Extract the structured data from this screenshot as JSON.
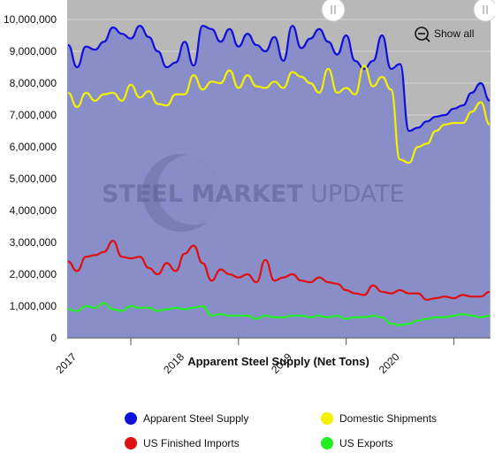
{
  "chart_data": {
    "type": "area",
    "title": "Apparent Steel Supply (Net Tons)",
    "watermark": {
      "bold": "STEEL MARKET",
      "light": " UPDATE"
    },
    "zoom_button_label": "Show all",
    "ylim": [
      0,
      10000000
    ],
    "y_ticks": [
      "0",
      "1,000,000",
      "2,000,000",
      "3,000,000",
      "4,000,000",
      "5,000,000",
      "6,000,000",
      "7,000,000",
      "8,000,000",
      "9,000,000",
      "10,000,000"
    ],
    "x_ticks": [
      "2017",
      "2018",
      "2019",
      "2020"
    ],
    "x_start": "2016-06",
    "grid": true,
    "legend_position": "bottom",
    "colors": {
      "background_band": "#b8b8b8",
      "plot_area": "#8a8ec8"
    },
    "series": [
      {
        "name": "Apparent Steel Supply",
        "color": "#1010dd",
        "values": [
          9200000,
          8500000,
          9150000,
          9050000,
          9300000,
          9750000,
          9550000,
          9400000,
          9800000,
          9450000,
          9000000,
          8500000,
          8650000,
          9300000,
          8550000,
          9800000,
          9700000,
          9300000,
          9700000,
          9150000,
          9550000,
          9200000,
          9000000,
          9450000,
          8700000,
          9800000,
          9100000,
          9400000,
          9700000,
          9300000,
          8900000,
          9500000,
          8700000,
          8450000,
          8700000,
          9500000,
          8450000,
          8600000,
          6500000,
          6600000,
          6800000,
          6950000,
          7000000,
          7200000,
          7300000,
          7700000,
          8000000,
          7450000
        ]
      },
      {
        "name": "Domestic Shipments",
        "color": "#f2f200",
        "values": [
          7700000,
          7250000,
          7700000,
          7450000,
          7650000,
          7700000,
          7450000,
          7950000,
          7550000,
          7750000,
          7350000,
          7300000,
          7650000,
          7650000,
          8250000,
          7800000,
          8050000,
          8000000,
          8400000,
          7850000,
          8250000,
          7900000,
          7850000,
          8050000,
          7850000,
          8350000,
          8200000,
          8000000,
          7700000,
          8450000,
          7700000,
          7850000,
          7650000,
          8550000,
          7900000,
          8200000,
          7800000,
          5600000,
          5500000,
          6000000,
          6100000,
          6500000,
          6700000,
          6750000,
          6750000,
          7100000,
          7400000,
          6700000
        ]
      },
      {
        "name": "US Finished Imports",
        "color": "#e01010",
        "values": [
          2400000,
          2100000,
          2550000,
          2600000,
          2700000,
          3050000,
          2550000,
          2500000,
          2550000,
          2200000,
          2000000,
          2350000,
          2100000,
          2650000,
          2900000,
          2350000,
          1800000,
          2150000,
          2000000,
          1900000,
          2000000,
          1750000,
          2450000,
          1800000,
          1900000,
          2000000,
          1800000,
          1750000,
          1900000,
          1750000,
          1700000,
          1500000,
          1400000,
          1350000,
          1650000,
          1450000,
          1400000,
          1500000,
          1400000,
          1400000,
          1200000,
          1250000,
          1300000,
          1250000,
          1350000,
          1300000,
          1300000,
          1450000
        ]
      },
      {
        "name": "US Exports",
        "color": "#22ee22",
        "values": [
          900000,
          850000,
          1000000,
          950000,
          1100000,
          900000,
          850000,
          1000000,
          950000,
          950000,
          850000,
          900000,
          950000,
          900000,
          950000,
          1000000,
          700000,
          750000,
          700000,
          700000,
          700000,
          600000,
          700000,
          650000,
          650000,
          700000,
          700000,
          650000,
          700000,
          650000,
          700000,
          600000,
          650000,
          650000,
          700000,
          650000,
          450000,
          400000,
          450000,
          550000,
          600000,
          650000,
          650000,
          700000,
          750000,
          700000,
          650000,
          700000
        ]
      }
    ]
  }
}
